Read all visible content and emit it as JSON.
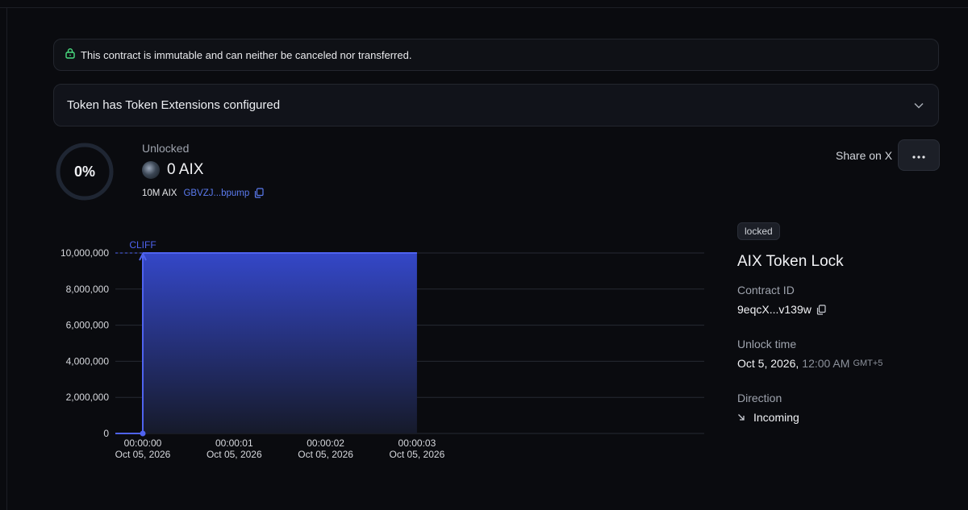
{
  "banner": {
    "text": "This contract is immutable and can neither be canceled nor transferred.",
    "icon": "lock-icon",
    "icon_color": "#4ade80"
  },
  "extensions": {
    "title": "Token has Token Extensions configured",
    "icon": "chevron-down-icon"
  },
  "progress": {
    "percent_label": "0%",
    "value": 0
  },
  "unlocked": {
    "label": "Unlocked",
    "amount": "0 AIX",
    "supply": "10M AIX",
    "mint_address": "GBVZJ...bpump"
  },
  "actions": {
    "share_label": "Share on X",
    "more_icon": "more-horizontal-icon"
  },
  "chart_data": {
    "type": "area",
    "y_ticks": [
      "10,000,000",
      "8,000,000",
      "6,000,000",
      "4,000,000",
      "2,000,000",
      "0"
    ],
    "x_ticks": [
      {
        "time": "00:00:00",
        "date": "Oct 05, 2026"
      },
      {
        "time": "00:00:01",
        "date": "Oct 05, 2026"
      },
      {
        "time": "00:00:02",
        "date": "Oct 05, 2026"
      },
      {
        "time": "00:00:03",
        "date": "Oct 05, 2026"
      }
    ],
    "ylim": [
      0,
      10000000
    ],
    "x": [
      0,
      0,
      3
    ],
    "values": [
      0,
      10000000,
      10000000
    ],
    "annotation": "CLIFF",
    "colors": {
      "line": "#4f63f0",
      "fill_top": "#3447c8",
      "fill_bottom": "#161a2a",
      "grid": "#262a33"
    }
  },
  "details": {
    "status": "locked",
    "title": "AIX Token Lock",
    "contract_id_label": "Contract ID",
    "contract_id": "9eqcX...v139w",
    "unlock_time_label": "Unlock time",
    "unlock_date": "Oct 5, 2026,",
    "unlock_clock": "12:00 AM",
    "unlock_tz": "GMT+5",
    "direction_label": "Direction",
    "direction": "Incoming"
  }
}
